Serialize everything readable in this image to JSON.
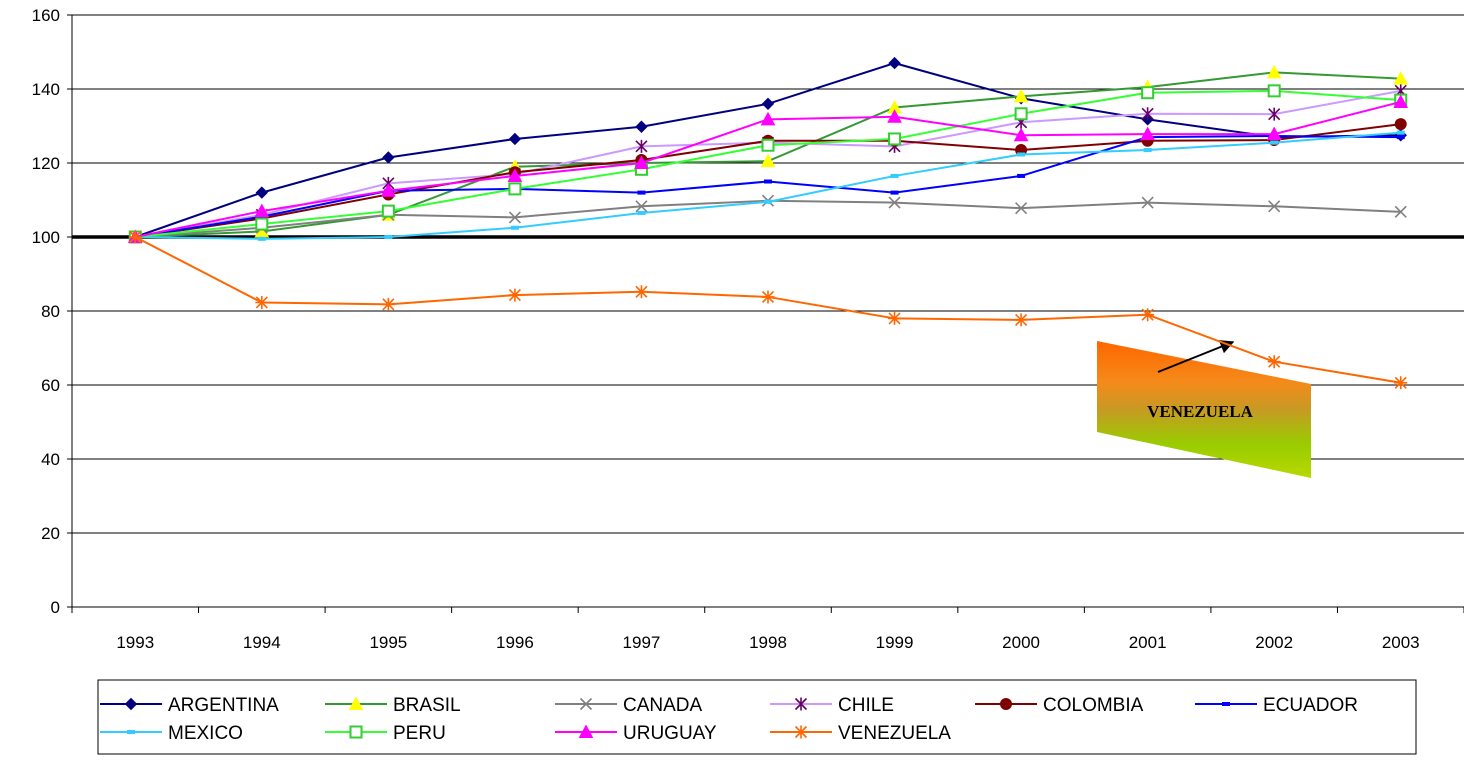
{
  "chart_data": {
    "type": "line",
    "title": "",
    "xlabel": "",
    "ylabel": "",
    "x": [
      "1993",
      "1994",
      "1995",
      "1996",
      "1997",
      "1998",
      "1999",
      "2000",
      "2001",
      "2002",
      "2003"
    ],
    "ylim": [
      0,
      160
    ],
    "yticks": [
      0,
      20,
      40,
      60,
      80,
      100,
      120,
      140,
      160
    ],
    "grid": true,
    "reference_line": 100,
    "legend_position": "bottom",
    "series": [
      {
        "name": "ARGENTINA",
        "color": "#000080",
        "marker": "diamond",
        "values": [
          100,
          112,
          121.5,
          126.5,
          129.8,
          136,
          147,
          137.5,
          131.8,
          127,
          127.5
        ]
      },
      {
        "name": "BRASIL",
        "color": "#339933",
        "marker": "triangle",
        "marker_color": "#ffff00",
        "values": [
          100,
          101.5,
          106,
          119,
          120,
          120.5,
          135,
          138,
          140.5,
          144.5,
          142.8
        ]
      },
      {
        "name": "CANADA",
        "color": "#808080",
        "marker": "x",
        "values": [
          100,
          102.5,
          106,
          105.3,
          108.3,
          109.8,
          109.3,
          107.8,
          109.3,
          108.3,
          106.8
        ]
      },
      {
        "name": "CHILE",
        "color": "#cc99ff",
        "marker": "star",
        "marker_color": "#660066",
        "values": [
          100,
          106,
          114.5,
          117,
          124.5,
          125.5,
          124.5,
          131,
          133.3,
          133.2,
          139.5
        ]
      },
      {
        "name": "COLOMBIA",
        "color": "#800000",
        "marker": "circle",
        "values": [
          100,
          105,
          111.5,
          117.5,
          120.8,
          126,
          126,
          123.5,
          126,
          126.2,
          130.5
        ]
      },
      {
        "name": "ECUADOR",
        "color": "#0000ff",
        "marker": "dash",
        "values": [
          100,
          105.5,
          112.5,
          113,
          112,
          115,
          112,
          116.5,
          127,
          127.3,
          127
        ]
      },
      {
        "name": "MEXICO",
        "color": "#33ccff",
        "marker": "dash",
        "values": [
          100,
          99.5,
          100,
          102.5,
          106.5,
          109.5,
          116.5,
          122.3,
          123.5,
          125.5,
          128.2
        ]
      },
      {
        "name": "PERU",
        "color": "#33ff33",
        "marker": "square",
        "marker_color": "#33cc33",
        "values": [
          100,
          103.5,
          107,
          113,
          118.3,
          124.8,
          126.5,
          133.3,
          139,
          139.5,
          137
        ]
      },
      {
        "name": "URUGUAY",
        "color": "#ff00ff",
        "marker": "triangle",
        "values": [
          100,
          107,
          112.5,
          116.5,
          120,
          131.8,
          132.5,
          127.5,
          127.8,
          127.8,
          136.5
        ]
      },
      {
        "name": "VENEZUELA",
        "color": "#ff6600",
        "marker": "asterisk",
        "values": [
          100,
          82.3,
          81.8,
          84.3,
          85.2,
          83.8,
          78,
          77.6,
          79,
          66.3,
          60.6
        ]
      }
    ],
    "annotations": [
      {
        "text": "VENEZUELA",
        "style": "gradient-box-with-arrow",
        "gradient": [
          "#ff6600",
          "#99cc00"
        ]
      }
    ]
  }
}
